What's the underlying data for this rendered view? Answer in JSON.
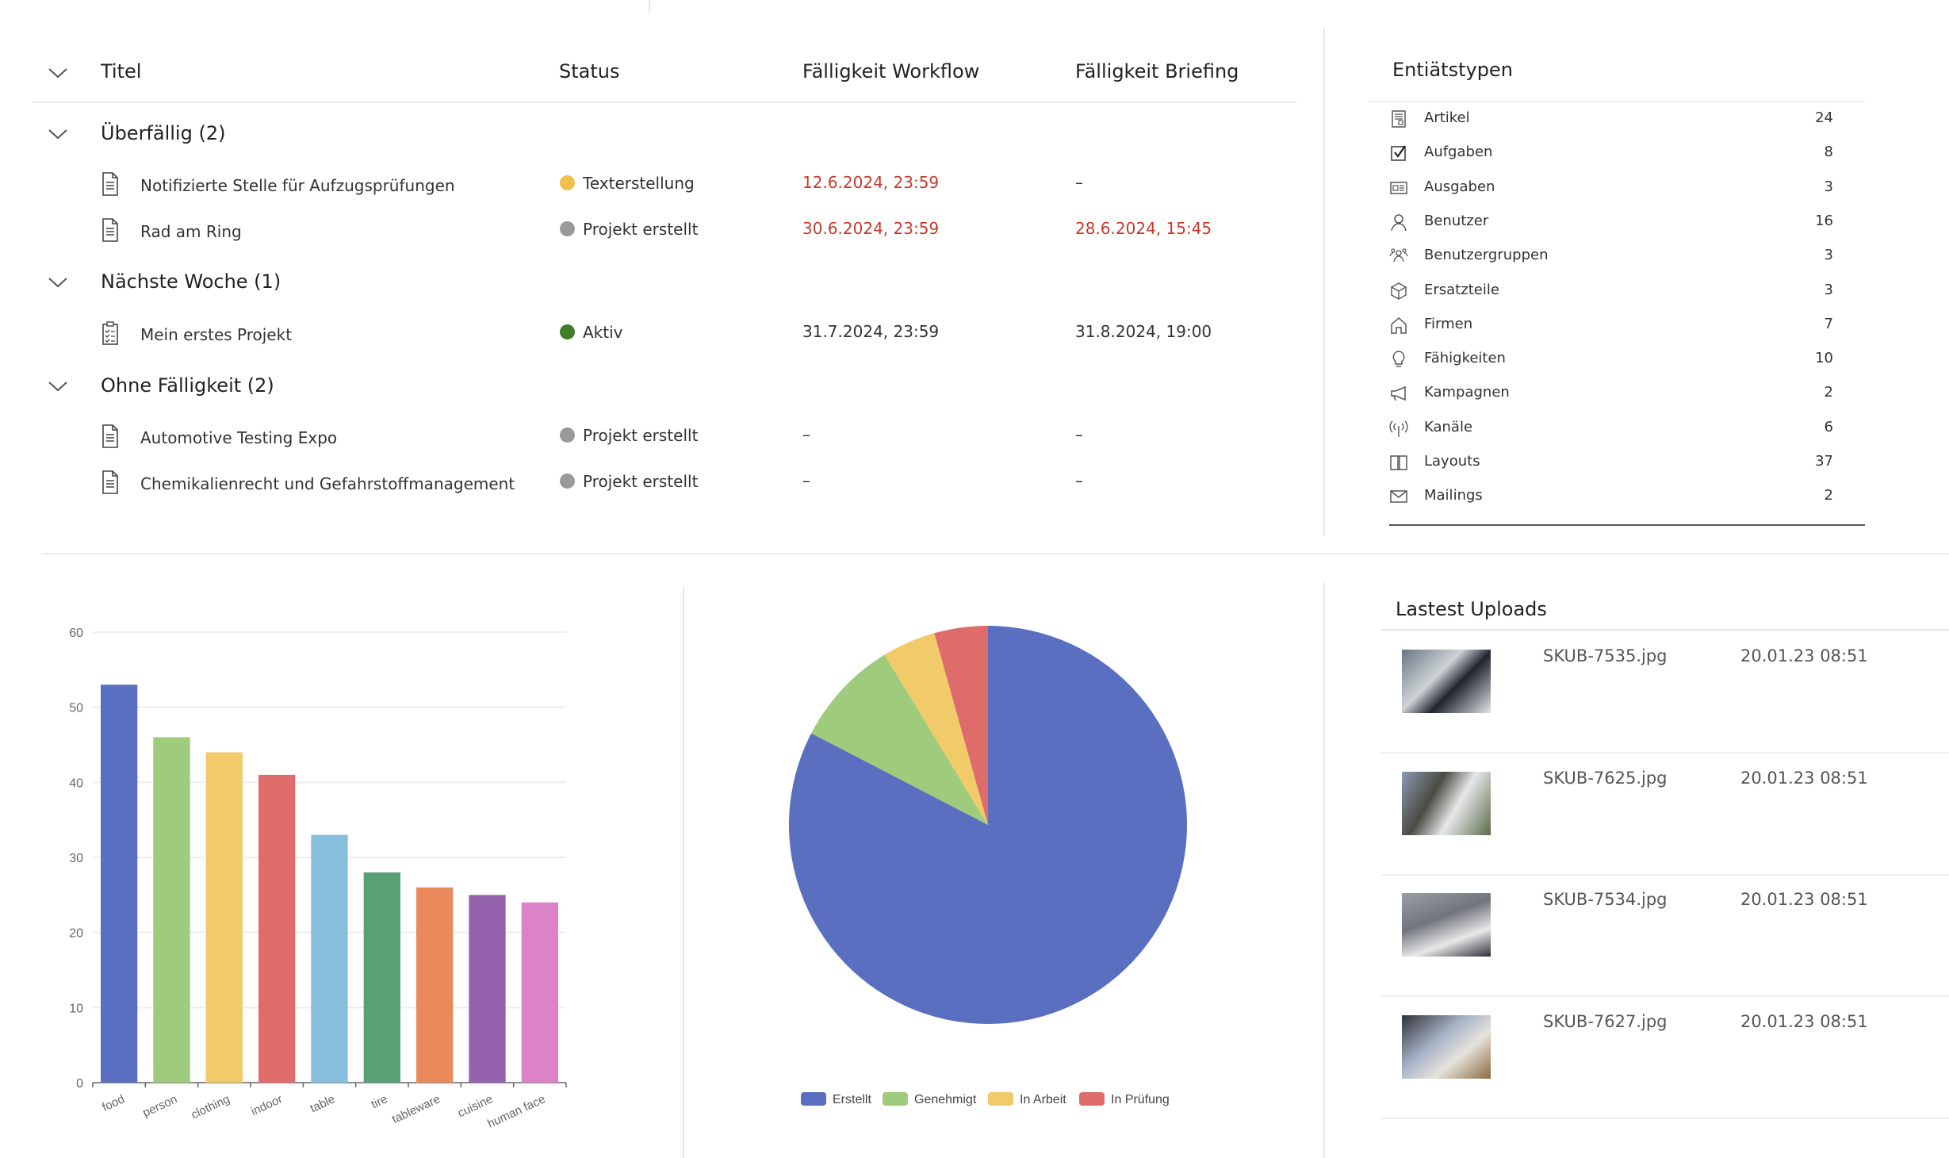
{
  "table": {
    "headers": {
      "title": "Titel",
      "status": "Status",
      "workflow_due": "Fälligkeit Workflow",
      "briefing_due": "Fälligkeit Briefing"
    },
    "groups": [
      {
        "label": "Überfällig (2)",
        "rows": [
          {
            "icon": "document-icon",
            "title": "Notifizierte Stelle für Aufzugsprüfungen",
            "status": "Texterstellung",
            "status_color": "#f0c04a",
            "workflow_due": "12.6.2024, 23:59",
            "workflow_overdue": true,
            "briefing_due": "–",
            "briefing_overdue": false
          },
          {
            "icon": "document-icon",
            "title": "Rad am Ring",
            "status": "Projekt erstellt",
            "status_color": "#999999",
            "workflow_due": "30.6.2024, 23:59",
            "workflow_overdue": true,
            "briefing_due": "28.6.2024, 15:45",
            "briefing_overdue": true
          }
        ]
      },
      {
        "label": "Nächste Woche (1)",
        "rows": [
          {
            "icon": "checklist-icon",
            "title": "Mein erstes Projekt",
            "status": "Aktiv",
            "status_color": "#3f7d2a",
            "workflow_due": "31.7.2024, 23:59",
            "workflow_overdue": false,
            "briefing_due": "31.8.2024, 19:00",
            "briefing_overdue": false
          }
        ]
      },
      {
        "label": "Ohne Fälligkeit (2)",
        "rows": [
          {
            "icon": "document-icon",
            "title": "Automotive Testing Expo",
            "status": "Projekt erstellt",
            "status_color": "#999999",
            "workflow_due": "–",
            "workflow_overdue": false,
            "briefing_due": "–",
            "briefing_overdue": false
          },
          {
            "icon": "document-icon",
            "title": "Chemikalienrecht und Gefahrstoffmanagement",
            "status": "Projekt erstellt",
            "status_color": "#999999",
            "workflow_due": "–",
            "workflow_overdue": false,
            "briefing_due": "–",
            "briefing_overdue": false
          }
        ]
      }
    ]
  },
  "entity_types": {
    "title": "Entiätstypen",
    "items": [
      {
        "icon": "article-icon",
        "label": "Artikel",
        "count": "24"
      },
      {
        "icon": "checkbox-icon",
        "label": "Aufgaben",
        "count": "8"
      },
      {
        "icon": "newspaper-icon",
        "label": "Ausgaben",
        "count": "3"
      },
      {
        "icon": "person-icon",
        "label": "Benutzer",
        "count": "16"
      },
      {
        "icon": "people-group-icon",
        "label": "Benutzergruppen",
        "count": "3"
      },
      {
        "icon": "cube-icon",
        "label": "Ersatzteile",
        "count": "3"
      },
      {
        "icon": "home-icon",
        "label": "Firmen",
        "count": "7"
      },
      {
        "icon": "lightbulb-icon",
        "label": "Fähigkeiten",
        "count": "10"
      },
      {
        "icon": "megaphone-icon",
        "label": "Kampagnen",
        "count": "2"
      },
      {
        "icon": "antenna-icon",
        "label": "Kanäle",
        "count": "6"
      },
      {
        "icon": "book-icon",
        "label": "Layouts",
        "count": "37"
      },
      {
        "icon": "mail-icon",
        "label": "Mailings",
        "count": "2"
      }
    ]
  },
  "chart_data": [
    {
      "type": "bar",
      "categories": [
        "food",
        "person",
        "clothing",
        "indoor",
        "table",
        "tire",
        "tableware",
        "cuisine",
        "human face"
      ],
      "values": [
        53,
        46,
        44,
        41,
        33,
        28,
        26,
        25,
        24
      ],
      "colors": [
        "#5a6fc0",
        "#9fcb7c",
        "#f1ca6a",
        "#de6c6b",
        "#86bedd",
        "#5aa077",
        "#ea8a5c",
        "#9563ad",
        "#dc82c8"
      ],
      "ylim": [
        0,
        60
      ],
      "yticks": [
        0,
        10,
        20,
        30,
        40,
        50,
        60
      ],
      "grid": true,
      "title": "",
      "xlabel": "",
      "ylabel": ""
    },
    {
      "type": "pie",
      "labels": [
        "Erstellt",
        "Genehmigt",
        "In Arbeit",
        "In Prüfung"
      ],
      "values": [
        19,
        2,
        1,
        1
      ],
      "colors": [
        "#5a6fc0",
        "#9fcb7c",
        "#f1ca6a",
        "#de6c6b"
      ],
      "legend": "bottom"
    }
  ],
  "uploads": {
    "title": "Lastest Uploads",
    "items": [
      {
        "name": "SKUB-7535.jpg",
        "date": "20.01.23 08:51"
      },
      {
        "name": "SKUB-7625.jpg",
        "date": "20.01.23 08:51"
      },
      {
        "name": "SKUB-7534.jpg",
        "date": "20.01.23 08:51"
      },
      {
        "name": "SKUB-7627.jpg",
        "date": "20.01.23 08:51"
      }
    ]
  }
}
